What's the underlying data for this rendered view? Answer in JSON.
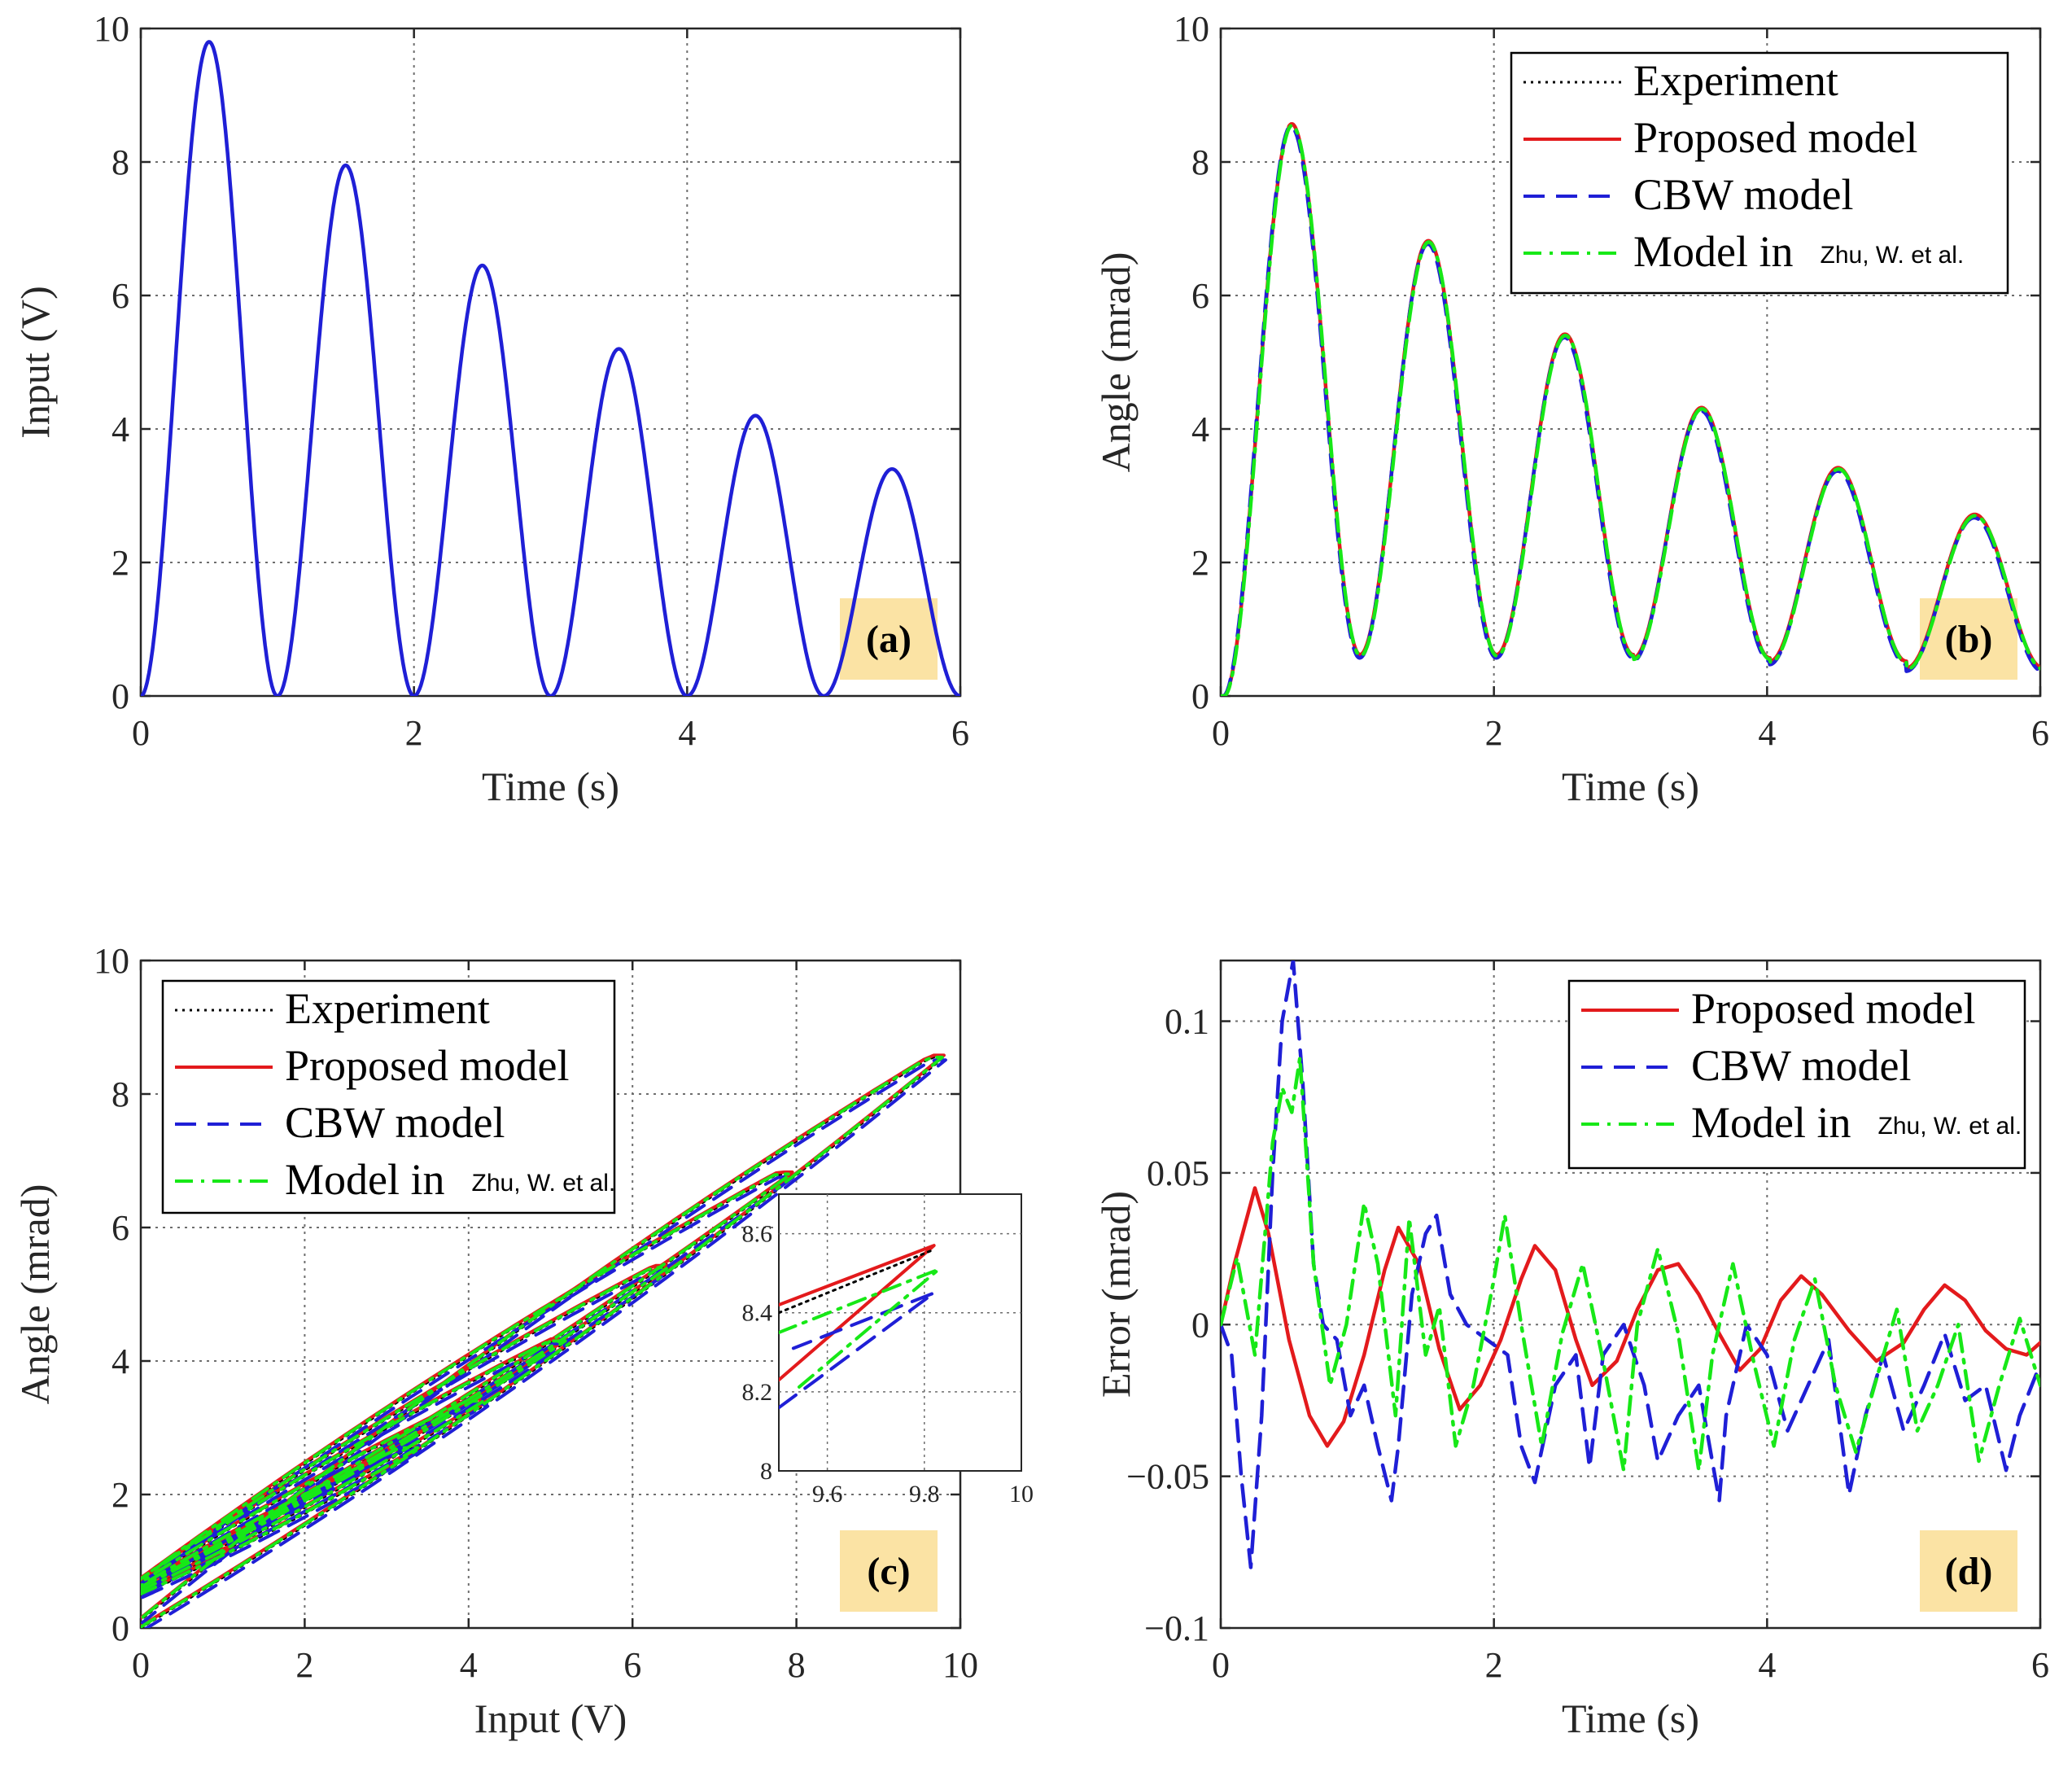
{
  "colors": {
    "experiment": "#000000",
    "proposed": "#e31a1c",
    "cbw": "#1f1fd6",
    "zhu": "#17e817",
    "input": "#1f1fd6",
    "badge": "#fbe3a4",
    "grid": "#6e6e6e"
  },
  "chart_data": [
    {
      "id": "a",
      "type": "line",
      "badge": "(a)",
      "xlabel": "Time (s)",
      "ylabel": "Input (V)",
      "xlim": [
        0,
        6
      ],
      "ylim": [
        0,
        10
      ],
      "xticks": [
        "0",
        "2",
        "4",
        "6"
      ],
      "yticks": [
        "0",
        "2",
        "4",
        "6",
        "8",
        "10"
      ],
      "grid": true,
      "series": [
        {
          "name": "Input",
          "peaks_x": [
            0.5,
            1.5,
            2.5,
            3.5,
            4.5,
            5.5
          ],
          "peaks_y": [
            9.8,
            7.95,
            6.45,
            5.2,
            4.2,
            3.4
          ],
          "min": 0,
          "period": 1.0
        }
      ]
    },
    {
      "id": "b",
      "type": "line",
      "badge": "(b)",
      "xlabel": "Time (s)",
      "ylabel": "Angle (mrad)",
      "xlim": [
        0,
        6
      ],
      "ylim": [
        0,
        10
      ],
      "xticks": [
        "0",
        "2",
        "4",
        "6"
      ],
      "yticks": [
        "0",
        "2",
        "4",
        "6",
        "8",
        "10"
      ],
      "grid": true,
      "legend": {
        "position": "top-right",
        "entries": [
          {
            "label": "Experiment",
            "style": "dotted",
            "series": "experiment"
          },
          {
            "label": "Proposed model",
            "style": "solid",
            "series": "proposed"
          },
          {
            "label": "CBW model",
            "style": "dashed",
            "series": "cbw"
          },
          {
            "label": "Model in ",
            "suffix": "Zhu, W. et al.",
            "style": "dashdot",
            "series": "zhu"
          }
        ]
      },
      "series": [
        {
          "name": "Experiment",
          "peaks_x": [
            0.52,
            1.52,
            2.52,
            3.52,
            4.52,
            5.52
          ],
          "peaks_y": [
            8.55,
            6.8,
            5.4,
            4.3,
            3.4,
            2.7
          ],
          "troughs_y": [
            0.6,
            0.6,
            0.6,
            0.55,
            0.5,
            0.4
          ]
        }
      ]
    },
    {
      "id": "c",
      "type": "line",
      "badge": "(c)",
      "xlabel": "Input (V)",
      "ylabel": "Angle (mrad)",
      "xlim": [
        0,
        10
      ],
      "ylim": [
        0,
        10
      ],
      "xticks": [
        "0",
        "2",
        "4",
        "6",
        "8",
        "10"
      ],
      "yticks": [
        "0",
        "2",
        "4",
        "6",
        "8",
        "10"
      ],
      "grid": true,
      "legend": {
        "position": "top-left",
        "entries": [
          {
            "label": "Experiment",
            "style": "dotted",
            "series": "experiment"
          },
          {
            "label": "Proposed model",
            "style": "solid",
            "series": "proposed"
          },
          {
            "label": "CBW model",
            "style": "dashed",
            "series": "cbw"
          },
          {
            "label": "Model in ",
            "suffix": "Zhu, W. et al.",
            "style": "dashdot",
            "series": "zhu"
          }
        ]
      },
      "loops": [
        {
          "vmax": 9.8,
          "amax": 8.55,
          "amin": 0.0
        },
        {
          "vmax": 7.95,
          "amax": 6.8,
          "amin": 0.6
        },
        {
          "vmax": 6.45,
          "amax": 5.4,
          "amin": 0.6
        },
        {
          "vmax": 5.2,
          "amax": 4.3,
          "amin": 0.6
        },
        {
          "vmax": 4.2,
          "amax": 3.4,
          "amin": 0.55
        },
        {
          "vmax": 3.4,
          "amax": 2.7,
          "amin": 0.5
        }
      ],
      "inset": {
        "xlim": [
          9.5,
          10
        ],
        "ylim": [
          8,
          8.7
        ],
        "xticks": [
          "9.6",
          "9.8",
          "10"
        ],
        "yticks": [
          "8",
          "8.2",
          "8.4",
          "8.6"
        ],
        "lines": [
          {
            "series": "proposed",
            "x": [
              9.5,
              9.82,
              9.5
            ],
            "y": [
              8.42,
              8.57,
              8.23
            ]
          },
          {
            "series": "experiment",
            "x": [
              9.5,
              9.82
            ],
            "y": [
              8.4,
              8.56
            ]
          },
          {
            "series": "cbw",
            "x": [
              9.5,
              9.82,
              9.53
            ],
            "y": [
              8.16,
              8.45,
              8.31
            ]
          },
          {
            "series": "zhu",
            "x": [
              9.5,
              9.83,
              9.53
            ],
            "y": [
              8.35,
              8.51,
              8.2
            ]
          }
        ]
      }
    },
    {
      "id": "d",
      "type": "line",
      "badge": "(d)",
      "xlabel": "Time (s)",
      "ylabel": "Error (mrad)",
      "xlim": [
        0,
        6
      ],
      "ylim": [
        -0.1,
        0.12
      ],
      "xticks": [
        "0",
        "2",
        "4",
        "6"
      ],
      "yticks": [
        "−0.1",
        "−0.05",
        "0",
        "0.05",
        "0.1"
      ],
      "grid": true,
      "legend": {
        "position": "top-right",
        "entries": [
          {
            "label": "Proposed model",
            "style": "solid",
            "series": "proposed"
          },
          {
            "label": "CBW model",
            "style": "dashed",
            "series": "cbw"
          },
          {
            "label": "Model in ",
            "suffix": "Zhu, W. et al.",
            "style": "dashdot",
            "series": "zhu"
          }
        ]
      },
      "series": [
        {
          "name": "Proposed model",
          "x": [
            0,
            0.1,
            0.25,
            0.35,
            0.5,
            0.65,
            0.78,
            0.9,
            1.05,
            1.2,
            1.3,
            1.45,
            1.6,
            1.75,
            1.9,
            2.05,
            2.2,
            2.3,
            2.45,
            2.6,
            2.72,
            2.9,
            3.05,
            3.2,
            3.35,
            3.5,
            3.65,
            3.8,
            3.95,
            4.1,
            4.25,
            4.4,
            4.6,
            4.8,
            5.0,
            5.15,
            5.3,
            5.45,
            5.6,
            5.75,
            5.9,
            6.0
          ],
          "y": [
            0,
            0.02,
            0.045,
            0.03,
            -0.005,
            -0.03,
            -0.04,
            -0.032,
            -0.01,
            0.018,
            0.032,
            0.02,
            -0.008,
            -0.028,
            -0.02,
            -0.005,
            0.015,
            0.026,
            0.018,
            -0.005,
            -0.02,
            -0.012,
            0.005,
            0.018,
            0.02,
            0.01,
            -0.003,
            -0.015,
            -0.008,
            0.008,
            0.016,
            0.01,
            -0.002,
            -0.012,
            -0.006,
            0.005,
            0.013,
            0.008,
            -0.002,
            -0.008,
            -0.01,
            -0.006
          ]
        },
        {
          "name": "CBW model",
          "x": [
            0,
            0.08,
            0.15,
            0.22,
            0.3,
            0.38,
            0.45,
            0.53,
            0.6,
            0.68,
            0.75,
            0.85,
            0.95,
            1.05,
            1.15,
            1.25,
            1.3,
            1.4,
            1.5,
            1.58,
            1.68,
            1.8,
            1.95,
            2.1,
            2.2,
            2.3,
            2.45,
            2.6,
            2.7,
            2.8,
            2.95,
            3.1,
            3.2,
            3.35,
            3.5,
            3.65,
            3.7,
            3.85,
            4.0,
            4.15,
            4.3,
            4.45,
            4.6,
            4.72,
            4.85,
            5.0,
            5.15,
            5.3,
            5.45,
            5.6,
            5.75,
            5.85,
            6.0
          ],
          "y": [
            0,
            -0.01,
            -0.05,
            -0.08,
            -0.03,
            0.05,
            0.1,
            0.12,
            0.08,
            0.02,
            0.0,
            -0.005,
            -0.03,
            -0.02,
            -0.04,
            -0.058,
            -0.04,
            0.01,
            0.03,
            0.036,
            0.01,
            0.0,
            -0.005,
            -0.01,
            -0.04,
            -0.052,
            -0.02,
            -0.01,
            -0.047,
            -0.01,
            0.0,
            -0.02,
            -0.045,
            -0.03,
            -0.02,
            -0.058,
            -0.03,
            0.0,
            -0.01,
            -0.035,
            -0.02,
            -0.005,
            -0.056,
            -0.03,
            -0.01,
            -0.035,
            -0.02,
            -0.003,
            -0.025,
            -0.02,
            -0.048,
            -0.03,
            -0.013
          ]
        },
        {
          "name": "Model in Zhu, W. et al.",
          "x": [
            0,
            0.12,
            0.25,
            0.38,
            0.45,
            0.52,
            0.58,
            0.68,
            0.8,
            0.92,
            1.05,
            1.15,
            1.28,
            1.38,
            1.5,
            1.6,
            1.72,
            1.85,
            2.0,
            2.08,
            2.2,
            2.35,
            2.5,
            2.65,
            2.8,
            2.95,
            3.05,
            3.2,
            3.35,
            3.5,
            3.6,
            3.75,
            3.9,
            4.05,
            4.2,
            4.35,
            4.5,
            4.65,
            4.8,
            4.95,
            5.1,
            5.25,
            5.4,
            5.55,
            5.7,
            5.85,
            6.0
          ],
          "y": [
            0,
            0.022,
            -0.01,
            0.06,
            0.078,
            0.07,
            0.088,
            0.02,
            -0.02,
            0.0,
            0.04,
            0.02,
            -0.03,
            0.035,
            -0.01,
            0.006,
            -0.04,
            -0.02,
            0.015,
            0.036,
            0.0,
            -0.04,
            -0.003,
            0.02,
            -0.012,
            -0.048,
            0.0,
            0.025,
            -0.003,
            -0.048,
            -0.01,
            0.02,
            -0.012,
            -0.04,
            -0.005,
            0.015,
            -0.02,
            -0.042,
            -0.018,
            0.005,
            -0.035,
            -0.02,
            0.0,
            -0.045,
            -0.02,
            0.002,
            -0.02
          ]
        }
      ]
    }
  ]
}
